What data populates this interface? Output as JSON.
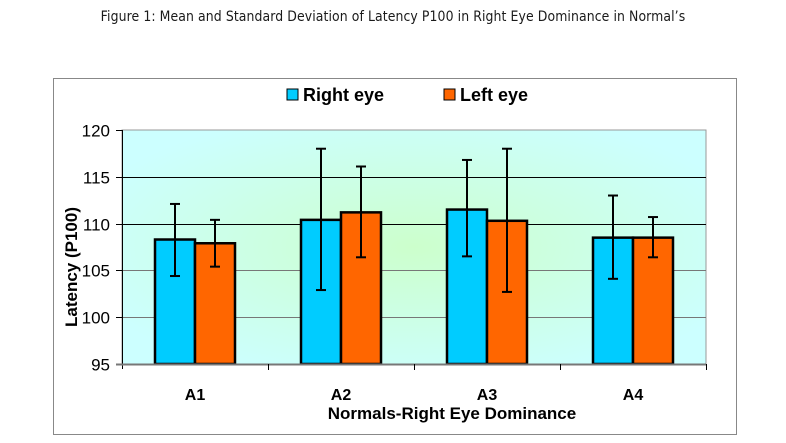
{
  "figure": {
    "caption": "Figure 1: Mean and Standard Deviation of Latency P100 in Right Eye Dominance in Normal’s"
  },
  "chart_data": {
    "type": "bar",
    "title": "",
    "xlabel": "Normals-Right Eye Dominance",
    "ylabel": "Latency (P100)",
    "categories": [
      "A1",
      "A2",
      "A3",
      "A4"
    ],
    "ylim": [
      95,
      120
    ],
    "yticks": [
      95,
      100,
      105,
      110,
      115,
      120
    ],
    "ytick_labels": [
      "95",
      "100",
      "105",
      "110",
      "115",
      "120"
    ],
    "grid": true,
    "legend_position": "top-center",
    "series": [
      {
        "name": "Right eye",
        "color": "#00ccff",
        "values": [
          108.3,
          110.4,
          111.5,
          108.5
        ],
        "error_low": [
          104.4,
          102.9,
          106.5,
          104.1
        ],
        "error_high": [
          112.1,
          118.0,
          116.8,
          113.0
        ]
      },
      {
        "name": "Left eye",
        "color": "#ff6600",
        "values": [
          107.9,
          111.2,
          110.3,
          108.5
        ],
        "error_low": [
          105.4,
          106.4,
          102.7,
          106.4
        ],
        "error_high": [
          110.4,
          116.1,
          118.0,
          110.7
        ]
      }
    ]
  }
}
